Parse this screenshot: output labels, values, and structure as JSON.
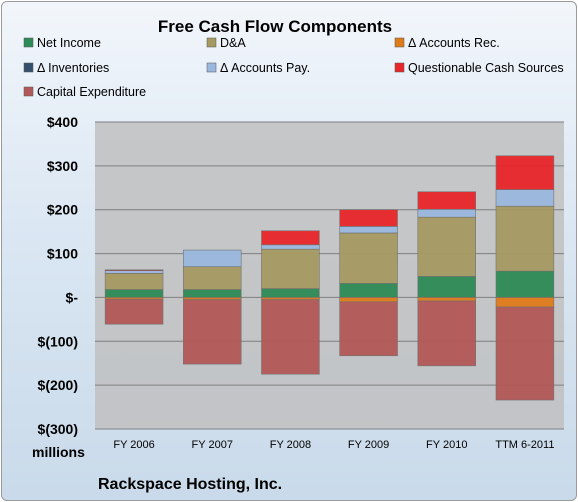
{
  "chart_data": {
    "type": "bar",
    "stacked": true,
    "title": "Free Cash Flow Components",
    "units_label": "millions",
    "footer": "Rackspace Hosting, Inc.",
    "categories": [
      "FY 2006",
      "FY 2007",
      "FY 2008",
      "FY 2009",
      "FY 2010",
      "TTM 6-2011"
    ],
    "ylim": [
      -300,
      400
    ],
    "yticks": [
      400,
      300,
      200,
      100,
      0,
      -100,
      -200,
      -300
    ],
    "ytick_labels": [
      "$400",
      "$300",
      "$200",
      "$100",
      "$-",
      "$(100)",
      "$(200)",
      "$(300)"
    ],
    "grid": true,
    "legend_position": "top",
    "series": [
      {
        "name": "Net Income",
        "color": "#2e8b57",
        "values": [
          18,
          18,
          20,
          32,
          48,
          60
        ]
      },
      {
        "name": "D&A",
        "color": "#a69a62",
        "values": [
          37,
          52,
          90,
          115,
          135,
          148
        ]
      },
      {
        "name": "Δ Accounts Rec.",
        "color": "#e07b1a",
        "values": [
          -4,
          -5,
          -5,
          -10,
          -8,
          -22
        ]
      },
      {
        "name": "Δ Inventories",
        "color": "#34506e",
        "values": [
          0,
          0,
          0,
          0,
          0,
          0
        ]
      },
      {
        "name": "Δ Accounts Pay.",
        "color": "#9ab8de",
        "values": [
          6,
          38,
          10,
          15,
          18,
          38
        ]
      },
      {
        "name": "Questionable Cash Sources",
        "color": "#e8262a",
        "values": [
          2,
          0,
          32,
          38,
          40,
          77
        ]
      },
      {
        "name": "Capital Expenditure",
        "color": "#b35858",
        "values": [
          -57,
          -147,
          -170,
          -123,
          -148,
          -212
        ]
      }
    ]
  }
}
